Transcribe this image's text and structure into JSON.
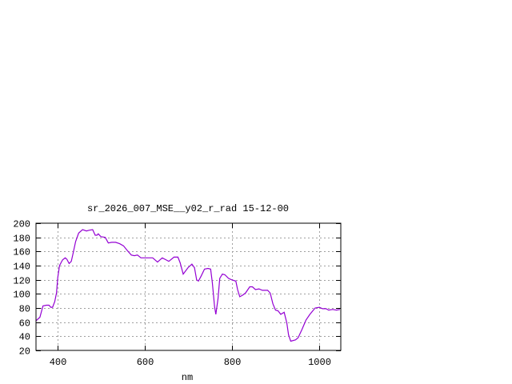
{
  "chart_data": {
    "type": "line",
    "title": "sr_2026_007_MSE__y02_r_rad 15-12-00",
    "xlabel": "nm",
    "ylabel": "",
    "xlim": [
      350,
      1050
    ],
    "ylim": [
      20,
      200
    ],
    "xticks": [
      400,
      600,
      800,
      1000
    ],
    "yticks": [
      20,
      40,
      60,
      80,
      100,
      120,
      140,
      160,
      180,
      200
    ],
    "grid": true,
    "line_color": "#9400d3",
    "series": [
      {
        "x": [
          350,
          352,
          359,
          366,
          374,
          380,
          384,
          388,
          393,
          397,
          400,
          404,
          411,
          417,
          421,
          426,
          431,
          435,
          441,
          448,
          457,
          466,
          472,
          480,
          486,
          490,
          493,
          499,
          509,
          516,
          524,
          533,
          542,
          551,
          560,
          569,
          576,
          583,
          591,
          600,
          609,
          618,
          629,
          640,
          649,
          655,
          667,
          676,
          681,
          688,
          699,
          708,
          714,
          719,
          723,
          729,
          737,
          745,
          751,
          755,
          760,
          763,
          768,
          772,
          778,
          784,
          792,
          799,
          809,
          813,
          818,
          824,
          831,
          841,
          847,
          854,
          862,
          870,
          882,
          888,
          894,
          900,
          906,
          912,
          920,
          926,
          930,
          935,
          946,
          952,
          961,
          970,
          979,
          991,
          1001,
          1008,
          1016,
          1022,
          1031,
          1040,
          1048
        ],
        "y": [
          62,
          63,
          67,
          83,
          84,
          84,
          81,
          81,
          89,
          101,
          123,
          140,
          148,
          151,
          149,
          143,
          146,
          157,
          174,
          186,
          191,
          189,
          190,
          191,
          183,
          183,
          185,
          181,
          180,
          172,
          173,
          173,
          171,
          168,
          161,
          155,
          154,
          155,
          151,
          151,
          151,
          151,
          145,
          151,
          148,
          146,
          152,
          152,
          144,
          128,
          137,
          142,
          137,
          120,
          118,
          125,
          135,
          136,
          135,
          116,
          82,
          71,
          93,
          122,
          128,
          127,
          122,
          120,
          118,
          106,
          96,
          98,
          101,
          110,
          110,
          106,
          107,
          105,
          105,
          101,
          86,
          77,
          76,
          71,
          74,
          59,
          42,
          33,
          35,
          38,
          50,
          63,
          71,
          80,
          81,
          79,
          79,
          77,
          78,
          77,
          78
        ]
      }
    ]
  }
}
